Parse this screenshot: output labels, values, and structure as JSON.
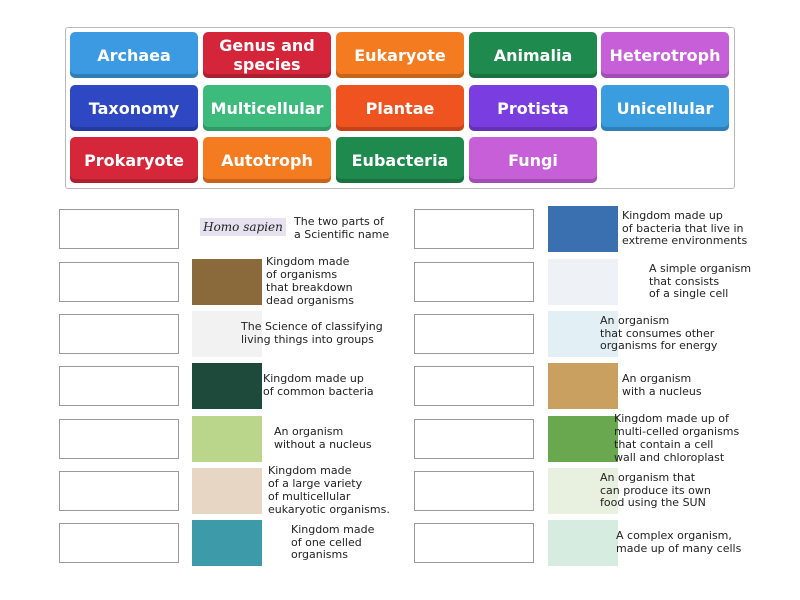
{
  "tiles": [
    {
      "label": "Archaea",
      "color": "#3b9ae1"
    },
    {
      "label": "Genus and species",
      "color": "#d4253b"
    },
    {
      "label": "Eukaryote",
      "color": "#f47b20"
    },
    {
      "label": "Animalia",
      "color": "#1e8a4d"
    },
    {
      "label": "Heterotroph",
      "color": "#c65fd8"
    },
    {
      "label": "Taxonomy",
      "color": "#2e47c2"
    },
    {
      "label": "Multicellular",
      "color": "#3cbb7d"
    },
    {
      "label": "Plantae",
      "color": "#ef531f"
    },
    {
      "label": "Protista",
      "color": "#7a3ddf"
    },
    {
      "label": "Unicellular",
      "color": "#3a9de0"
    },
    {
      "label": "Prokaryote",
      "color": "#d5263a"
    },
    {
      "label": "Autotroph",
      "color": "#f47b20"
    },
    {
      "label": "Eubacteria",
      "color": "#1e8a4d"
    },
    {
      "label": "Fungi",
      "color": "#c65fd8"
    }
  ],
  "left": [
    {
      "image_text": "Homo sapien",
      "lines": [
        "The two parts of",
        "a Scientific name"
      ]
    },
    {
      "lines": [
        "Kingdom made",
        "of organisms",
        "that breakdown",
        "dead organisms"
      ]
    },
    {
      "lines": [
        "The Science of classifying",
        "living things into groups"
      ]
    },
    {
      "lines": [
        "Kingdom made up",
        "of common bacteria"
      ]
    },
    {
      "lines": [
        "An organism",
        "without a nucleus"
      ]
    },
    {
      "lines": [
        "Kingdom made",
        "of a large variety",
        "of multicellular",
        "eukaryotic organisms."
      ]
    },
    {
      "lines": [
        "Kingdom made",
        "of one celled",
        "organisms"
      ]
    }
  ],
  "right": [
    {
      "lines": [
        "Kingdom made up",
        "of bacteria that live in",
        "extreme environments"
      ]
    },
    {
      "lines": [
        "A simple organism",
        "that consists",
        "of a single cell"
      ]
    },
    {
      "lines": [
        "An organism",
        "that consumes other",
        "organisms for energy"
      ]
    },
    {
      "lines": [
        "An organism",
        "with a nucleus"
      ]
    },
    {
      "lines": [
        "Kingdom made up of",
        "multi-celled organisms",
        "that contain a cell",
        "wall and chloroplast"
      ]
    },
    {
      "lines": [
        "An organism that",
        "can produce its own",
        "food using the SUN"
      ]
    },
    {
      "lines": [
        "A complex organism,",
        "made up of many cells"
      ]
    }
  ]
}
